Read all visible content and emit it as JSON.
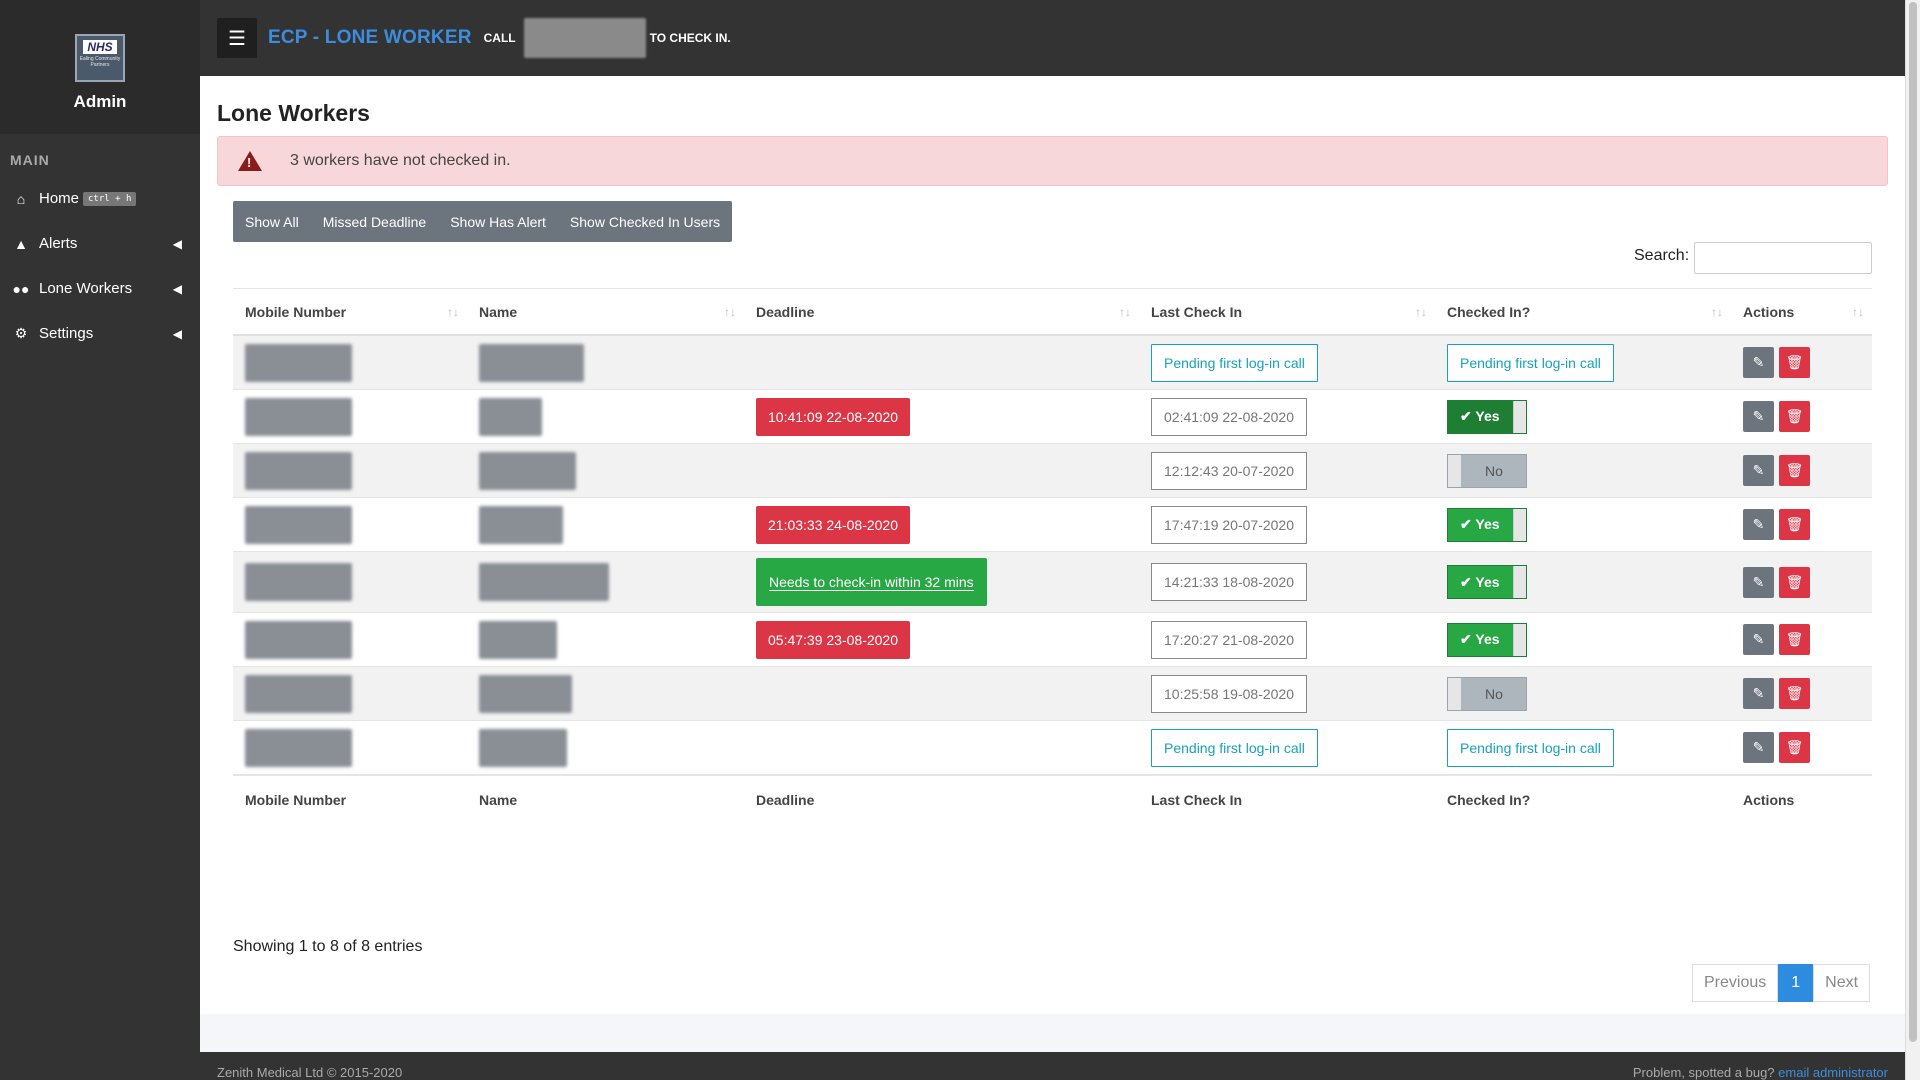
{
  "sidebar": {
    "logo_text": "NHS",
    "logo_sub": "Ealing Community Partners",
    "admin_label": "Admin",
    "section_header": "MAIN",
    "items": [
      {
        "label": "Home",
        "shortcut": "ctrl + h",
        "icon": "home-icon"
      },
      {
        "label": "Alerts",
        "icon": "warning-icon"
      },
      {
        "label": "Lone Workers",
        "icon": "users-icon"
      },
      {
        "label": "Settings",
        "icon": "cogs-icon"
      }
    ]
  },
  "topbar": {
    "title": "ECP - LONE WORKER",
    "call_prefix": "CALL",
    "call_suffix": "TO CHECK IN."
  },
  "page": {
    "title": "Lone Workers",
    "alert_text": "3 workers have not checked in."
  },
  "filters": [
    "Show All",
    "Missed Deadline",
    "Show Has Alert",
    "Show Checked In Users"
  ],
  "search": {
    "label": "Search:",
    "value": ""
  },
  "table": {
    "headers": [
      "Mobile Number",
      "Name",
      "Deadline",
      "Last Check In",
      "Checked In?",
      "Actions"
    ],
    "rows": [
      {
        "deadline": "",
        "deadline_status": "none",
        "last_check_in": "Pending first log-in call",
        "last_pending": true,
        "checked_in": "Pending first log-in call",
        "checked_type": "pending"
      },
      {
        "deadline": "10:41:09 22-08-2020",
        "deadline_status": "missed",
        "last_check_in": "02:41:09 22-08-2020",
        "last_pending": false,
        "checked_in": "Yes",
        "checked_type": "yes-dark"
      },
      {
        "deadline": "",
        "deadline_status": "none",
        "last_check_in": "12:12:43 20-07-2020",
        "last_pending": false,
        "checked_in": "No",
        "checked_type": "no"
      },
      {
        "deadline": "21:03:33 24-08-2020",
        "deadline_status": "missed",
        "last_check_in": "17:47:19 20-07-2020",
        "last_pending": false,
        "checked_in": "Yes",
        "checked_type": "yes"
      },
      {
        "deadline": "Needs to check-in within 32 mins",
        "deadline_status": "due",
        "last_check_in": "14:21:33 18-08-2020",
        "last_pending": false,
        "checked_in": "Yes",
        "checked_type": "yes"
      },
      {
        "deadline": "05:47:39 23-08-2020",
        "deadline_status": "missed",
        "last_check_in": "17:20:27 21-08-2020",
        "last_pending": false,
        "checked_in": "Yes",
        "checked_type": "yes"
      },
      {
        "deadline": "",
        "deadline_status": "none",
        "last_check_in": "10:25:58 19-08-2020",
        "last_pending": false,
        "checked_in": "No",
        "checked_type": "no"
      },
      {
        "deadline": "",
        "deadline_status": "none",
        "last_check_in": "Pending first log-in call",
        "last_pending": true,
        "checked_in": "Pending first log-in call",
        "checked_type": "pending"
      }
    ]
  },
  "showing_text": "Showing 1 to 8 of 8 entries",
  "pagination": {
    "previous": "Previous",
    "current": "1",
    "next": "Next"
  },
  "footer": {
    "copyright": "Zenith Medical Ltd © 2015-2020",
    "bug_text": "Problem, spotted a bug?",
    "bug_link": "email administrator"
  },
  "colors": {
    "accent": "#3c8dde",
    "danger": "#dc3545",
    "success": "#28a745",
    "info": "#17a2b8",
    "sidebar": "#333333"
  }
}
